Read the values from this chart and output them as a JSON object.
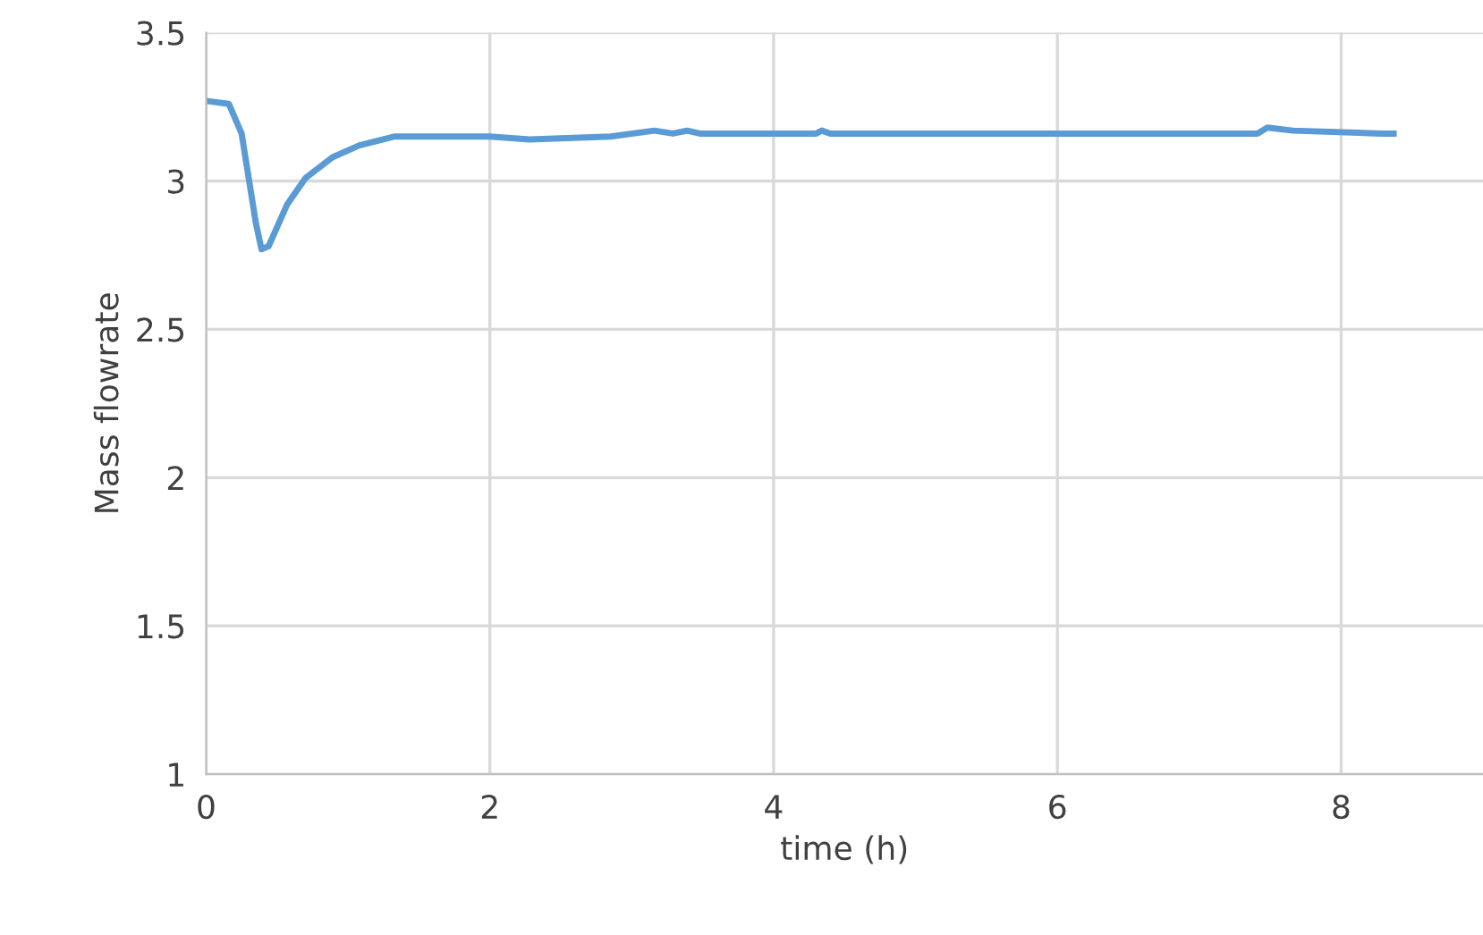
{
  "chart_data": {
    "type": "line",
    "xlabel": "time (h)",
    "ylabel": "Mass flowrate",
    "xlim": [
      0,
      9
    ],
    "xticks": [
      0,
      2,
      4,
      6,
      8
    ],
    "ylim": [
      1,
      3.5
    ],
    "yticks": [
      1,
      {
        "value": 1.5,
        "label": "1.5"
      },
      2,
      {
        "value": 2.5,
        "label": "2.5"
      },
      3,
      {
        "value": 3.5,
        "label": "3.5"
      }
    ],
    "grid": true,
    "marker": "none",
    "line_style": "solid",
    "series": [
      {
        "color": "#5b9bd5",
        "x": [
          0,
          0.16,
          0.25,
          0.35,
          0.39,
          0.44,
          0.57,
          0.7,
          0.89,
          1.08,
          1.33,
          2.0,
          2.28,
          2.85,
          3.16,
          3.29,
          3.39,
          3.48,
          3.67,
          4.3,
          4.34,
          4.4,
          7.41,
          7.48,
          7.66,
          8.29,
          8.37
        ],
        "values": [
          3.27,
          3.26,
          3.16,
          2.86,
          2.77,
          2.78,
          2.92,
          3.01,
          3.08,
          3.12,
          3.15,
          3.15,
          3.14,
          3.15,
          3.17,
          3.16,
          3.17,
          3.16,
          3.16,
          3.16,
          3.17,
          3.16,
          3.16,
          3.18,
          3.17,
          3.16,
          3.16
        ]
      }
    ]
  }
}
